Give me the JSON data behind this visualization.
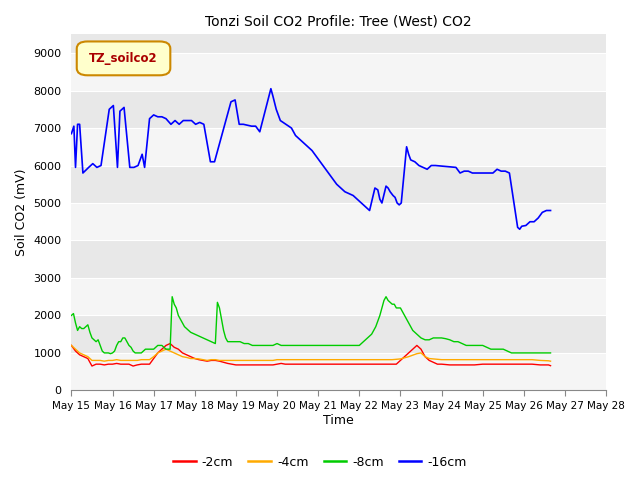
{
  "title": "Tonzi Soil CO2 Profile: Tree (West) CO2",
  "xlabel": "Time",
  "ylabel": "Soil CO2 (mV)",
  "ylim": [
    0,
    9500
  ],
  "yticks": [
    0,
    1000,
    2000,
    3000,
    4000,
    5000,
    6000,
    7000,
    8000,
    9000
  ],
  "xlim": [
    0,
    13
  ],
  "xtick_labels": [
    "May 15",
    "May 16",
    "May 17",
    "May 18",
    "May 19",
    "May 20",
    "May 21",
    "May 22",
    "May 23",
    "May 24",
    "May 25",
    "May 26",
    "May 27",
    "May 28"
  ],
  "fig_bg_color": "#ffffff",
  "plot_bg_color": "#e8e8e8",
  "grid_color": "#ffffff",
  "legend_label": "TZ_soilco2",
  "legend_bg": "#ffffcc",
  "legend_border": "#cc8800",
  "legend_text_color": "#aa0000",
  "series_colors": {
    "-2cm": "#ff0000",
    "-4cm": "#ffaa00",
    "-8cm": "#00cc00",
    "-16cm": "#0000ff"
  },
  "series_16cm": [
    [
      0.0,
      6850
    ],
    [
      0.06,
      7050
    ],
    [
      0.1,
      5950
    ],
    [
      0.15,
      7100
    ],
    [
      0.2,
      7100
    ],
    [
      0.28,
      5800
    ],
    [
      0.42,
      5950
    ],
    [
      0.52,
      6050
    ],
    [
      0.62,
      5950
    ],
    [
      0.72,
      6000
    ],
    [
      0.92,
      7500
    ],
    [
      1.02,
      7600
    ],
    [
      1.12,
      5950
    ],
    [
      1.18,
      7450
    ],
    [
      1.28,
      7550
    ],
    [
      1.42,
      5950
    ],
    [
      1.52,
      5950
    ],
    [
      1.62,
      6000
    ],
    [
      1.72,
      6300
    ],
    [
      1.78,
      5950
    ],
    [
      1.9,
      7250
    ],
    [
      2.0,
      7350
    ],
    [
      2.1,
      7300
    ],
    [
      2.2,
      7300
    ],
    [
      2.3,
      7250
    ],
    [
      2.42,
      7100
    ],
    [
      2.52,
      7200
    ],
    [
      2.62,
      7100
    ],
    [
      2.72,
      7200
    ],
    [
      2.82,
      7200
    ],
    [
      2.92,
      7200
    ],
    [
      3.02,
      7100
    ],
    [
      3.12,
      7150
    ],
    [
      3.22,
      7100
    ],
    [
      3.38,
      6100
    ],
    [
      3.48,
      6100
    ],
    [
      3.58,
      6500
    ],
    [
      3.88,
      7700
    ],
    [
      3.98,
      7750
    ],
    [
      4.08,
      7100
    ],
    [
      4.18,
      7100
    ],
    [
      4.38,
      7050
    ],
    [
      4.48,
      7050
    ],
    [
      4.58,
      6900
    ],
    [
      4.85,
      8050
    ],
    [
      4.9,
      7850
    ],
    [
      4.98,
      7500
    ],
    [
      5.08,
      7200
    ],
    [
      5.35,
      7000
    ],
    [
      5.45,
      6800
    ],
    [
      5.55,
      6700
    ],
    [
      5.65,
      6600
    ],
    [
      5.85,
      6400
    ],
    [
      6.05,
      6100
    ],
    [
      6.25,
      5800
    ],
    [
      6.45,
      5500
    ],
    [
      6.65,
      5300
    ],
    [
      6.85,
      5200
    ],
    [
      7.05,
      5000
    ],
    [
      7.25,
      4800
    ],
    [
      7.38,
      5400
    ],
    [
      7.45,
      5350
    ],
    [
      7.5,
      5100
    ],
    [
      7.55,
      5000
    ],
    [
      7.65,
      5450
    ],
    [
      7.7,
      5400
    ],
    [
      7.75,
      5300
    ],
    [
      7.82,
      5200
    ],
    [
      7.87,
      5150
    ],
    [
      7.92,
      5000
    ],
    [
      7.97,
      4950
    ],
    [
      8.02,
      5000
    ],
    [
      8.15,
      6500
    ],
    [
      8.2,
      6300
    ],
    [
      8.25,
      6150
    ],
    [
      8.35,
      6100
    ],
    [
      8.4,
      6050
    ],
    [
      8.45,
      6000
    ],
    [
      8.55,
      5950
    ],
    [
      8.65,
      5900
    ],
    [
      8.75,
      6000
    ],
    [
      8.85,
      6000
    ],
    [
      9.35,
      5950
    ],
    [
      9.45,
      5800
    ],
    [
      9.55,
      5850
    ],
    [
      9.65,
      5850
    ],
    [
      9.75,
      5800
    ],
    [
      9.85,
      5800
    ],
    [
      9.95,
      5800
    ],
    [
      10.05,
      5800
    ],
    [
      10.15,
      5800
    ],
    [
      10.25,
      5800
    ],
    [
      10.35,
      5900
    ],
    [
      10.45,
      5850
    ],
    [
      10.55,
      5850
    ],
    [
      10.65,
      5800
    ],
    [
      10.85,
      4350
    ],
    [
      10.9,
      4300
    ],
    [
      10.95,
      4380
    ],
    [
      11.05,
      4400
    ],
    [
      11.15,
      4500
    ],
    [
      11.25,
      4500
    ],
    [
      11.35,
      4600
    ],
    [
      11.45,
      4750
    ],
    [
      11.55,
      4800
    ],
    [
      11.65,
      4800
    ]
  ],
  "series_2cm": [
    [
      0.0,
      1200
    ],
    [
      0.1,
      1050
    ],
    [
      0.2,
      950
    ],
    [
      0.3,
      900
    ],
    [
      0.4,
      850
    ],
    [
      0.5,
      650
    ],
    [
      0.6,
      700
    ],
    [
      0.7,
      700
    ],
    [
      0.8,
      680
    ],
    [
      0.9,
      700
    ],
    [
      1.0,
      700
    ],
    [
      1.1,
      720
    ],
    [
      1.2,
      700
    ],
    [
      1.3,
      700
    ],
    [
      1.4,
      700
    ],
    [
      1.5,
      650
    ],
    [
      1.6,
      680
    ],
    [
      1.7,
      700
    ],
    [
      1.8,
      700
    ],
    [
      1.9,
      700
    ],
    [
      2.0,
      850
    ],
    [
      2.1,
      1000
    ],
    [
      2.2,
      1100
    ],
    [
      2.3,
      1200
    ],
    [
      2.4,
      1250
    ],
    [
      2.5,
      1150
    ],
    [
      2.6,
      1100
    ],
    [
      2.7,
      1000
    ],
    [
      2.8,
      950
    ],
    [
      2.9,
      900
    ],
    [
      3.0,
      850
    ],
    [
      3.1,
      820
    ],
    [
      3.2,
      800
    ],
    [
      3.3,
      780
    ],
    [
      3.4,
      800
    ],
    [
      3.5,
      800
    ],
    [
      3.6,
      780
    ],
    [
      3.7,
      750
    ],
    [
      3.8,
      720
    ],
    [
      3.9,
      700
    ],
    [
      4.0,
      680
    ],
    [
      4.1,
      680
    ],
    [
      4.2,
      680
    ],
    [
      4.3,
      680
    ],
    [
      4.4,
      680
    ],
    [
      4.5,
      680
    ],
    [
      4.6,
      680
    ],
    [
      4.7,
      680
    ],
    [
      4.8,
      680
    ],
    [
      4.9,
      680
    ],
    [
      5.0,
      700
    ],
    [
      5.1,
      720
    ],
    [
      5.2,
      700
    ],
    [
      5.3,
      700
    ],
    [
      5.4,
      700
    ],
    [
      5.5,
      700
    ],
    [
      5.6,
      700
    ],
    [
      5.7,
      700
    ],
    [
      5.8,
      700
    ],
    [
      5.9,
      700
    ],
    [
      6.0,
      700
    ],
    [
      6.1,
      700
    ],
    [
      6.2,
      700
    ],
    [
      6.3,
      700
    ],
    [
      6.4,
      700
    ],
    [
      6.5,
      700
    ],
    [
      6.6,
      700
    ],
    [
      6.7,
      700
    ],
    [
      6.8,
      700
    ],
    [
      6.9,
      700
    ],
    [
      7.0,
      700
    ],
    [
      7.1,
      700
    ],
    [
      7.2,
      700
    ],
    [
      7.3,
      700
    ],
    [
      7.4,
      700
    ],
    [
      7.5,
      700
    ],
    [
      7.6,
      700
    ],
    [
      7.7,
      700
    ],
    [
      7.8,
      700
    ],
    [
      7.9,
      700
    ],
    [
      8.0,
      800
    ],
    [
      8.1,
      900
    ],
    [
      8.2,
      1000
    ],
    [
      8.3,
      1100
    ],
    [
      8.4,
      1200
    ],
    [
      8.5,
      1100
    ],
    [
      8.6,
      900
    ],
    [
      8.7,
      800
    ],
    [
      8.8,
      750
    ],
    [
      8.9,
      700
    ],
    [
      9.0,
      700
    ],
    [
      9.2,
      680
    ],
    [
      9.4,
      680
    ],
    [
      9.6,
      680
    ],
    [
      9.8,
      680
    ],
    [
      10.0,
      700
    ],
    [
      10.2,
      700
    ],
    [
      10.4,
      700
    ],
    [
      10.6,
      700
    ],
    [
      10.8,
      700
    ],
    [
      11.0,
      700
    ],
    [
      11.2,
      700
    ],
    [
      11.4,
      680
    ],
    [
      11.6,
      680
    ],
    [
      11.65,
      660
    ]
  ],
  "series_4cm": [
    [
      0.0,
      1200
    ],
    [
      0.1,
      1100
    ],
    [
      0.2,
      1000
    ],
    [
      0.3,
      950
    ],
    [
      0.4,
      900
    ],
    [
      0.5,
      800
    ],
    [
      0.6,
      800
    ],
    [
      0.7,
      800
    ],
    [
      0.8,
      780
    ],
    [
      0.9,
      800
    ],
    [
      1.0,
      800
    ],
    [
      1.1,
      820
    ],
    [
      1.2,
      800
    ],
    [
      1.3,
      800
    ],
    [
      1.4,
      800
    ],
    [
      1.5,
      800
    ],
    [
      1.6,
      800
    ],
    [
      1.7,
      820
    ],
    [
      1.8,
      820
    ],
    [
      1.9,
      820
    ],
    [
      2.0,
      900
    ],
    [
      2.1,
      1000
    ],
    [
      2.2,
      1050
    ],
    [
      2.3,
      1100
    ],
    [
      2.4,
      1050
    ],
    [
      2.5,
      1000
    ],
    [
      2.6,
      950
    ],
    [
      2.7,
      900
    ],
    [
      2.8,
      880
    ],
    [
      2.9,
      850
    ],
    [
      3.0,
      850
    ],
    [
      3.1,
      840
    ],
    [
      3.2,
      820
    ],
    [
      3.3,
      800
    ],
    [
      3.4,
      820
    ],
    [
      3.5,
      820
    ],
    [
      3.6,
      800
    ],
    [
      3.7,
      800
    ],
    [
      3.8,
      800
    ],
    [
      3.9,
      800
    ],
    [
      4.0,
      800
    ],
    [
      4.1,
      800
    ],
    [
      4.2,
      800
    ],
    [
      4.3,
      800
    ],
    [
      4.4,
      800
    ],
    [
      4.5,
      800
    ],
    [
      4.6,
      800
    ],
    [
      4.7,
      800
    ],
    [
      4.8,
      800
    ],
    [
      4.9,
      800
    ],
    [
      5.0,
      820
    ],
    [
      5.1,
      820
    ],
    [
      5.2,
      820
    ],
    [
      5.3,
      820
    ],
    [
      5.4,
      820
    ],
    [
      5.5,
      820
    ],
    [
      5.6,
      820
    ],
    [
      5.7,
      820
    ],
    [
      5.8,
      820
    ],
    [
      5.9,
      820
    ],
    [
      6.0,
      820
    ],
    [
      6.2,
      820
    ],
    [
      6.4,
      820
    ],
    [
      6.6,
      820
    ],
    [
      6.8,
      820
    ],
    [
      7.0,
      820
    ],
    [
      7.2,
      820
    ],
    [
      7.4,
      820
    ],
    [
      7.6,
      820
    ],
    [
      7.8,
      820
    ],
    [
      8.0,
      840
    ],
    [
      8.2,
      900
    ],
    [
      8.4,
      980
    ],
    [
      8.5,
      1000
    ],
    [
      8.6,
      900
    ],
    [
      8.7,
      850
    ],
    [
      8.8,
      840
    ],
    [
      8.9,
      830
    ],
    [
      9.0,
      820
    ],
    [
      9.2,
      820
    ],
    [
      9.4,
      820
    ],
    [
      9.6,
      820
    ],
    [
      9.8,
      820
    ],
    [
      10.0,
      820
    ],
    [
      10.2,
      820
    ],
    [
      10.4,
      820
    ],
    [
      10.6,
      820
    ],
    [
      10.8,
      820
    ],
    [
      11.0,
      820
    ],
    [
      11.2,
      820
    ],
    [
      11.4,
      800
    ],
    [
      11.6,
      790
    ],
    [
      11.65,
      780
    ]
  ],
  "series_8cm": [
    [
      0.0,
      2000
    ],
    [
      0.05,
      2050
    ],
    [
      0.1,
      1800
    ],
    [
      0.15,
      1600
    ],
    [
      0.2,
      1700
    ],
    [
      0.25,
      1650
    ],
    [
      0.3,
      1650
    ],
    [
      0.35,
      1700
    ],
    [
      0.4,
      1750
    ],
    [
      0.45,
      1550
    ],
    [
      0.5,
      1400
    ],
    [
      0.55,
      1350
    ],
    [
      0.6,
      1300
    ],
    [
      0.65,
      1350
    ],
    [
      0.7,
      1200
    ],
    [
      0.75,
      1050
    ],
    [
      0.8,
      1000
    ],
    [
      0.85,
      1000
    ],
    [
      0.9,
      1000
    ],
    [
      0.95,
      980
    ],
    [
      1.0,
      1000
    ],
    [
      1.05,
      1050
    ],
    [
      1.1,
      1200
    ],
    [
      1.15,
      1300
    ],
    [
      1.2,
      1300
    ],
    [
      1.25,
      1400
    ],
    [
      1.3,
      1400
    ],
    [
      1.35,
      1300
    ],
    [
      1.4,
      1200
    ],
    [
      1.45,
      1150
    ],
    [
      1.5,
      1050
    ],
    [
      1.55,
      1000
    ],
    [
      1.6,
      1000
    ],
    [
      1.65,
      1000
    ],
    [
      1.7,
      1000
    ],
    [
      1.75,
      1050
    ],
    [
      1.8,
      1100
    ],
    [
      1.85,
      1100
    ],
    [
      1.9,
      1100
    ],
    [
      1.95,
      1100
    ],
    [
      2.0,
      1100
    ],
    [
      2.1,
      1200
    ],
    [
      2.2,
      1200
    ],
    [
      2.3,
      1100
    ],
    [
      2.4,
      1100
    ],
    [
      2.45,
      2500
    ],
    [
      2.5,
      2300
    ],
    [
      2.55,
      2200
    ],
    [
      2.6,
      2000
    ],
    [
      2.65,
      1900
    ],
    [
      2.7,
      1800
    ],
    [
      2.75,
      1700
    ],
    [
      2.8,
      1650
    ],
    [
      2.85,
      1600
    ],
    [
      2.9,
      1550
    ],
    [
      3.0,
      1500
    ],
    [
      3.1,
      1450
    ],
    [
      3.2,
      1400
    ],
    [
      3.3,
      1350
    ],
    [
      3.4,
      1300
    ],
    [
      3.5,
      1250
    ],
    [
      3.55,
      2350
    ],
    [
      3.6,
      2200
    ],
    [
      3.65,
      1900
    ],
    [
      3.7,
      1600
    ],
    [
      3.75,
      1400
    ],
    [
      3.8,
      1300
    ],
    [
      3.9,
      1300
    ],
    [
      4.0,
      1300
    ],
    [
      4.1,
      1300
    ],
    [
      4.2,
      1250
    ],
    [
      4.3,
      1250
    ],
    [
      4.4,
      1200
    ],
    [
      4.5,
      1200
    ],
    [
      4.6,
      1200
    ],
    [
      4.7,
      1200
    ],
    [
      4.8,
      1200
    ],
    [
      4.9,
      1200
    ],
    [
      5.0,
      1250
    ],
    [
      5.1,
      1200
    ],
    [
      5.2,
      1200
    ],
    [
      5.3,
      1200
    ],
    [
      5.4,
      1200
    ],
    [
      5.5,
      1200
    ],
    [
      5.6,
      1200
    ],
    [
      5.7,
      1200
    ],
    [
      5.8,
      1200
    ],
    [
      5.9,
      1200
    ],
    [
      6.0,
      1200
    ],
    [
      6.1,
      1200
    ],
    [
      6.2,
      1200
    ],
    [
      6.3,
      1200
    ],
    [
      6.4,
      1200
    ],
    [
      6.5,
      1200
    ],
    [
      6.6,
      1200
    ],
    [
      6.7,
      1200
    ],
    [
      6.8,
      1200
    ],
    [
      6.9,
      1200
    ],
    [
      7.0,
      1200
    ],
    [
      7.1,
      1300
    ],
    [
      7.2,
      1400
    ],
    [
      7.3,
      1500
    ],
    [
      7.4,
      1700
    ],
    [
      7.5,
      2000
    ],
    [
      7.55,
      2200
    ],
    [
      7.6,
      2400
    ],
    [
      7.65,
      2500
    ],
    [
      7.7,
      2400
    ],
    [
      7.75,
      2350
    ],
    [
      7.8,
      2300
    ],
    [
      7.85,
      2300
    ],
    [
      7.9,
      2200
    ],
    [
      8.0,
      2200
    ],
    [
      8.05,
      2100
    ],
    [
      8.1,
      2000
    ],
    [
      8.15,
      1900
    ],
    [
      8.2,
      1800
    ],
    [
      8.3,
      1600
    ],
    [
      8.4,
      1500
    ],
    [
      8.5,
      1400
    ],
    [
      8.6,
      1350
    ],
    [
      8.7,
      1350
    ],
    [
      8.8,
      1400
    ],
    [
      8.9,
      1400
    ],
    [
      9.0,
      1400
    ],
    [
      9.1,
      1380
    ],
    [
      9.2,
      1350
    ],
    [
      9.3,
      1300
    ],
    [
      9.4,
      1300
    ],
    [
      9.5,
      1250
    ],
    [
      9.6,
      1200
    ],
    [
      9.7,
      1200
    ],
    [
      9.8,
      1200
    ],
    [
      9.9,
      1200
    ],
    [
      10.0,
      1200
    ],
    [
      10.1,
      1150
    ],
    [
      10.2,
      1100
    ],
    [
      10.3,
      1100
    ],
    [
      10.4,
      1100
    ],
    [
      10.5,
      1100
    ],
    [
      10.6,
      1050
    ],
    [
      10.7,
      1000
    ],
    [
      10.8,
      1000
    ],
    [
      10.9,
      1000
    ],
    [
      11.0,
      1000
    ],
    [
      11.1,
      1000
    ],
    [
      11.2,
      1000
    ],
    [
      11.3,
      1000
    ],
    [
      11.4,
      1000
    ],
    [
      11.5,
      1000
    ],
    [
      11.6,
      1000
    ],
    [
      11.65,
      1000
    ]
  ]
}
